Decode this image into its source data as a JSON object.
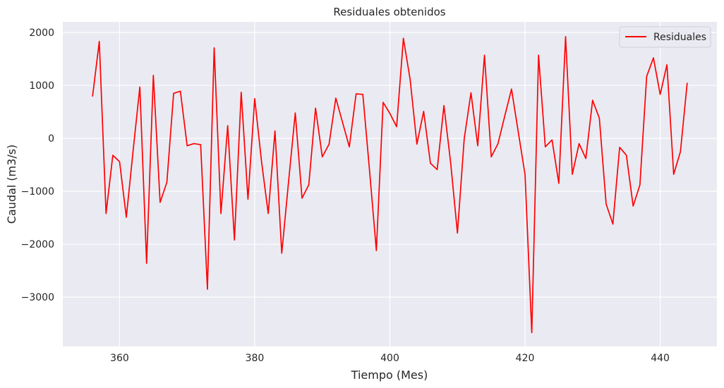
{
  "chart_data": {
    "type": "line",
    "title": "Residuales obtenidos",
    "xlabel": "Tiempo (Mes)",
    "ylabel": "Caudal (m3/s)",
    "xlim": [
      351.6,
      448.4
    ],
    "ylim": [
      -3930,
      2200
    ],
    "xticks": [
      360,
      380,
      400,
      420,
      440
    ],
    "yticks": [
      -3000,
      -2000,
      -1000,
      0,
      1000,
      2000
    ],
    "xtick_labels": [
      "360",
      "380",
      "400",
      "420",
      "440"
    ],
    "ytick_labels": [
      "−3000",
      "−2000",
      "−1000",
      "0",
      "1000",
      "2000"
    ],
    "grid": true,
    "legend": "top-right",
    "background": "#eaeaf2",
    "series": [
      {
        "name": "Residuales",
        "color": "#ff0000",
        "x": [
          356,
          357,
          358,
          359,
          360,
          361,
          362,
          363,
          364,
          365,
          366,
          367,
          368,
          369,
          370,
          371,
          372,
          373,
          374,
          375,
          376,
          377,
          378,
          379,
          380,
          381,
          382,
          383,
          384,
          385,
          386,
          387,
          388,
          389,
          390,
          391,
          392,
          393,
          394,
          395,
          396,
          397,
          398,
          399,
          400,
          401,
          402,
          403,
          404,
          405,
          406,
          407,
          408,
          409,
          410,
          411,
          412,
          413,
          414,
          415,
          416,
          417,
          418,
          419,
          420,
          421,
          422,
          423,
          424,
          425,
          426,
          427,
          428,
          429,
          430,
          431,
          432,
          433,
          434,
          435,
          436,
          437,
          438,
          439,
          440,
          441,
          442,
          443,
          444
        ],
        "y": [
          790,
          1830,
          -1420,
          -320,
          -440,
          -1490,
          -240,
          970,
          -2360,
          1190,
          -1210,
          -830,
          850,
          890,
          -140,
          -100,
          -120,
          -2850,
          1710,
          -1420,
          240,
          -1920,
          870,
          -1150,
          750,
          -430,
          -1420,
          140,
          -2170,
          -830,
          480,
          -1130,
          -880,
          570,
          -350,
          -110,
          760,
          300,
          -160,
          840,
          830,
          -620,
          -2120,
          680,
          470,
          220,
          1890,
          1110,
          -110,
          510,
          -470,
          -590,
          620,
          -470,
          -1790,
          -10,
          860,
          -140,
          1570,
          -350,
          -100,
          420,
          930,
          120,
          -680,
          -3670,
          1570,
          -160,
          -30,
          -850,
          1920,
          -680,
          -100,
          -380,
          720,
          380,
          -1240,
          -1620,
          -170,
          -320,
          -1280,
          -880,
          1170,
          1520,
          830,
          1390,
          -680,
          -250,
          1050
        ]
      }
    ]
  }
}
